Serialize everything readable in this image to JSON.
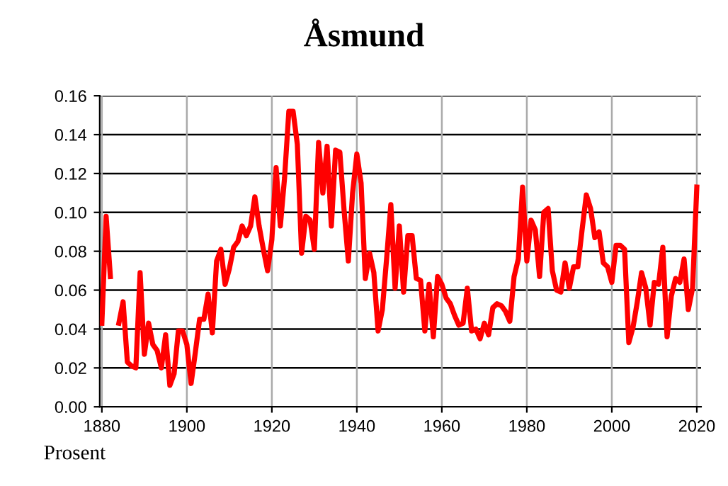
{
  "chart_data": {
    "type": "line",
    "title": "Åsmund",
    "annotations": [
      "Prosent"
    ],
    "x": [
      1880,
      1881,
      1882,
      1883,
      1884,
      1885,
      1886,
      1887,
      1888,
      1889,
      1890,
      1891,
      1892,
      1893,
      1894,
      1895,
      1896,
      1897,
      1898,
      1899,
      1900,
      1901,
      1902,
      1903,
      1904,
      1905,
      1906,
      1907,
      1908,
      1909,
      1910,
      1911,
      1912,
      1913,
      1914,
      1915,
      1916,
      1917,
      1918,
      1919,
      1920,
      1921,
      1922,
      1923,
      1924,
      1925,
      1926,
      1927,
      1928,
      1929,
      1930,
      1931,
      1932,
      1933,
      1934,
      1935,
      1936,
      1937,
      1938,
      1939,
      1940,
      1941,
      1942,
      1943,
      1944,
      1945,
      1946,
      1947,
      1948,
      1949,
      1950,
      1951,
      1952,
      1953,
      1954,
      1955,
      1956,
      1957,
      1958,
      1959,
      1960,
      1961,
      1962,
      1963,
      1964,
      1965,
      1966,
      1967,
      1968,
      1969,
      1970,
      1971,
      1972,
      1973,
      1974,
      1975,
      1976,
      1977,
      1978,
      1979,
      1980,
      1981,
      1982,
      1983,
      1984,
      1985,
      1986,
      1987,
      1988,
      1989,
      1990,
      1991,
      1992,
      1993,
      1994,
      1995,
      1996,
      1997,
      1998,
      1999,
      2000,
      2001,
      2002,
      2003,
      2004,
      2005,
      2006,
      2007,
      2008,
      2009,
      2010,
      2011,
      2012,
      2013,
      2014,
      2015,
      2016,
      2017,
      2018,
      2019,
      2020
    ],
    "series": [
      {
        "color": "#ff0000",
        "values": [
          0.043,
          0.098,
          0.067,
          null,
          0.043,
          0.054,
          0.023,
          0.021,
          0.02,
          0.069,
          0.027,
          0.043,
          0.032,
          0.029,
          0.02,
          0.037,
          0.011,
          0.017,
          0.039,
          0.039,
          0.032,
          0.012,
          0.028,
          0.045,
          0.045,
          0.058,
          0.038,
          0.075,
          0.081,
          0.063,
          0.071,
          0.082,
          0.085,
          0.093,
          0.088,
          0.093,
          0.108,
          0.093,
          0.081,
          0.07,
          0.086,
          0.123,
          0.093,
          0.118,
          0.152,
          0.152,
          0.135,
          0.079,
          0.098,
          0.096,
          0.081,
          0.136,
          0.11,
          0.134,
          0.093,
          0.132,
          0.131,
          0.101,
          0.075,
          0.11,
          0.13,
          0.115,
          0.066,
          0.079,
          0.069,
          0.039,
          0.05,
          0.076,
          0.104,
          0.061,
          0.093,
          0.059,
          0.088,
          0.088,
          0.066,
          0.065,
          0.039,
          0.063,
          0.036,
          0.067,
          0.063,
          0.056,
          0.053,
          0.047,
          0.042,
          0.043,
          0.061,
          0.039,
          0.04,
          0.035,
          0.043,
          0.037,
          0.051,
          0.053,
          0.052,
          0.049,
          0.044,
          0.067,
          0.076,
          0.113,
          0.075,
          0.096,
          0.091,
          0.067,
          0.1,
          0.102,
          0.07,
          0.06,
          0.059,
          0.074,
          0.061,
          0.072,
          0.072,
          0.091,
          0.109,
          0.102,
          0.087,
          0.09,
          0.074,
          0.072,
          0.064,
          0.083,
          0.083,
          0.081,
          0.033,
          0.041,
          0.054,
          0.069,
          0.061,
          0.042,
          0.064,
          0.063,
          0.082,
          0.036,
          0.057,
          0.066,
          0.064,
          0.076,
          0.05,
          0.061,
          0.113
        ]
      }
    ],
    "xlim": [
      1879.5,
      2021
    ],
    "xticks": [
      1880,
      1900,
      1920,
      1940,
      1960,
      1980,
      2000,
      2020
    ],
    "ylim": [
      0,
      0.16
    ],
    "yticks": [
      {
        "value": 0,
        "label": "0.00"
      },
      {
        "value": 0.02,
        "label": "0.02"
      },
      {
        "value": 0.04,
        "label": "0.04"
      },
      {
        "value": 0.06,
        "label": "0.06"
      },
      {
        "value": 0.08,
        "label": "0.08"
      },
      {
        "value": 0.1,
        "label": "0.10"
      },
      {
        "value": 0.12,
        "label": "0.12"
      },
      {
        "value": 0.14,
        "label": "0.14"
      },
      {
        "value": 0.16,
        "label": "0.16"
      }
    ],
    "grid": true,
    "marker": "none",
    "line_style": "solid"
  }
}
